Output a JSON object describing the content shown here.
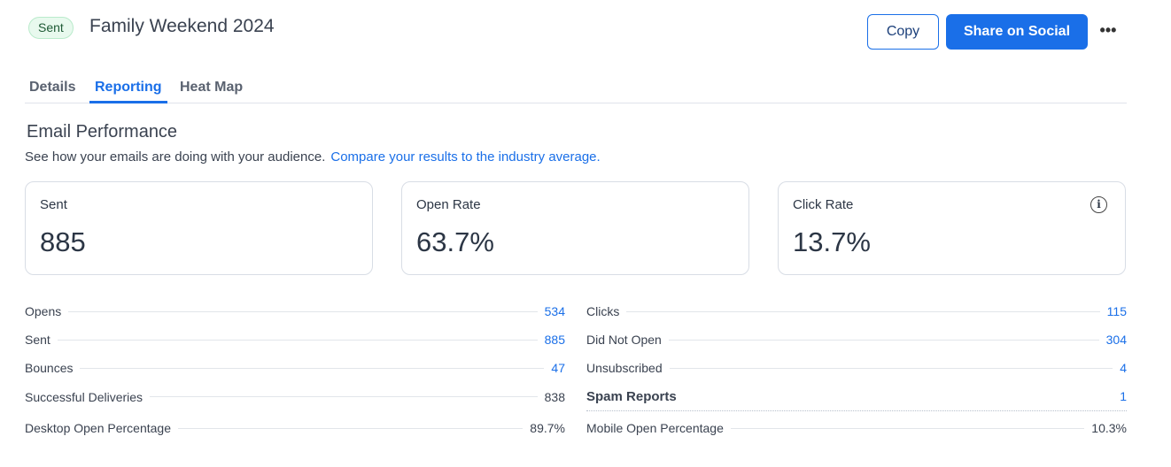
{
  "header": {
    "status_badge": "Sent",
    "title": "Family Weekend 2024",
    "copy_label": "Copy",
    "share_label": "Share on Social",
    "more_label": "•••"
  },
  "tabs": [
    {
      "label": "Details"
    },
    {
      "label": "Reporting",
      "active": true
    },
    {
      "label": "Heat Map"
    }
  ],
  "section": {
    "title": "Email Performance",
    "description": "See how your emails are doing with your audience.",
    "compare_link": "Compare your results to the industry average."
  },
  "cards": [
    {
      "label": "Sent",
      "value": "885"
    },
    {
      "label": "Open Rate",
      "value": "63.7%"
    },
    {
      "label": "Click Rate",
      "value": "13.7%",
      "icon": "info-icon"
    }
  ],
  "stats_left": [
    {
      "label": "Opens",
      "value": "534"
    },
    {
      "label": "Sent",
      "value": "885"
    },
    {
      "label": "Bounces",
      "value": "47"
    },
    {
      "label": "Successful Deliveries",
      "value": "838"
    },
    {
      "label": "Desktop Open Percentage",
      "value": "89.7%"
    }
  ],
  "stats_right": [
    {
      "label": "Clicks",
      "value": "115"
    },
    {
      "label": "Did Not Open",
      "value": "304"
    },
    {
      "label": "Unsubscribed",
      "value": "4"
    },
    {
      "label": "Spam Reports",
      "value": "1"
    },
    {
      "label": "Mobile Open Percentage",
      "value": "10.3%"
    }
  ],
  "colors": {
    "accent": "#1a6fe8",
    "badge_bg": "#e8f9ee"
  }
}
